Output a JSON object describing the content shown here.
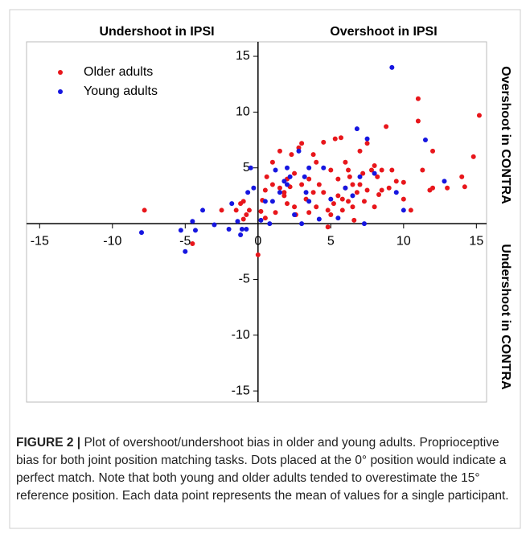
{
  "chart_data": {
    "type": "scatter",
    "annotations": [
      "Undershoot in IPSI",
      "Overshoot in IPSI",
      "Overshoot in CONTRA",
      "Undershoot in CONTRA"
    ],
    "caption_label": "FIGURE 2 |",
    "caption_text": "Plot of overshoot/undershoot bias in older and young adults. Proprioceptive bias for both joint position matching tasks. Dots placed at the 0° position would indicate a perfect match. Note that both young and older adults tended to overestimate the 15° reference position. Each data point represents the mean of values for a single participant.",
    "xlim": [
      -15.9,
      15.7
    ],
    "ylim": [
      -16,
      16.3
    ],
    "xticks": [
      -15,
      -10,
      -5,
      0,
      5,
      10,
      15
    ],
    "yticks": [
      -15,
      -10,
      -5,
      5,
      10,
      15
    ],
    "legend": "top-left",
    "series": [
      {
        "name": "Older adults",
        "color": "#e8161b",
        "x": [
          -7.8,
          -4.5,
          -2.5,
          -1.5,
          -1.2,
          -1,
          -1,
          -0.8,
          -0.6,
          0,
          0.2,
          0.3,
          0.5,
          0.5,
          0.6,
          1,
          1,
          1.2,
          1.5,
          1.5,
          1.8,
          2,
          2,
          2.3,
          2.5,
          2.5,
          2.8,
          3,
          3,
          3.3,
          3.5,
          3.5,
          3.8,
          4,
          4.2,
          4.5,
          4.5,
          4.8,
          5,
          5,
          5.2,
          5.3,
          5.5,
          5.5,
          5.7,
          5.8,
          6,
          6,
          6.2,
          6.3,
          6.5,
          6.5,
          6.8,
          7,
          7,
          7.2,
          7.3,
          7.5,
          7.5,
          7.8,
          8,
          8,
          8.2,
          8.5,
          8.5,
          8.8,
          9,
          9.2,
          9.5,
          10,
          10,
          10.5,
          11,
          11,
          11.3,
          11.8,
          12,
          12,
          13,
          14,
          14.2,
          14.8,
          15.2,
          1.8,
          2.2,
          3.8,
          4.8,
          6.6,
          5.8,
          2.6,
          4,
          6.2,
          8.3
        ],
        "values": [
          1.2,
          -1.8,
          1.2,
          1.2,
          1.8,
          0.4,
          2,
          0.8,
          1.2,
          -2.8,
          1.1,
          2.1,
          0.5,
          3,
          4.2,
          3.5,
          5.5,
          1,
          6.5,
          3.2,
          2.5,
          4,
          1.8,
          6.2,
          4.5,
          1.5,
          6.8,
          7.2,
          3.5,
          2.2,
          4,
          1,
          6.2,
          5.5,
          3.5,
          2.8,
          7.3,
          1.2,
          4.8,
          0.8,
          1.8,
          7.6,
          4,
          2.5,
          7.7,
          1.2,
          5.5,
          3.2,
          2,
          4.2,
          3.5,
          1.5,
          2.8,
          3.5,
          6.5,
          4.5,
          2,
          3,
          7.2,
          4.8,
          1.5,
          5.2,
          4.2,
          3,
          4.8,
          8.7,
          3.2,
          4.8,
          3.8,
          2.2,
          3.7,
          1.2,
          11.2,
          9.2,
          4.8,
          3,
          6.5,
          3.2,
          3.2,
          4.2,
          3.3,
          6,
          9.7,
          2.8,
          3.3,
          2.8,
          -0.3,
          0.3,
          2.2,
          0.8,
          1.5,
          4.8,
          2.6
        ]
      },
      {
        "name": "Young adults",
        "color": "#1616e0",
        "x": [
          -8,
          -5.3,
          -5,
          -4.5,
          -4.3,
          -3.8,
          -3,
          -2,
          -1.8,
          -1.4,
          -1.2,
          -1.1,
          -0.8,
          -0.7,
          -0.5,
          -0.3,
          0.2,
          0.5,
          0.8,
          1,
          1.2,
          1.5,
          1.8,
          2,
          2.2,
          2.5,
          2.8,
          3.2,
          3.3,
          3.5,
          3.5,
          4.2,
          4.5,
          5,
          5.5,
          6,
          6.8,
          7,
          7.3,
          7.5,
          8,
          9.5,
          9.2,
          10,
          11.5,
          12.8,
          2,
          3,
          6.5
        ],
        "values": [
          -0.8,
          -0.6,
          -2.5,
          0.2,
          -0.6,
          1.2,
          -0.1,
          -0.5,
          1.8,
          0.2,
          -1,
          -0.5,
          -0.5,
          2.8,
          5,
          3.2,
          0.3,
          2,
          0,
          2,
          4.8,
          2.8,
          3.8,
          5,
          4.2,
          0.8,
          6.5,
          4.2,
          2.8,
          5,
          2,
          0.4,
          5,
          2.2,
          0.5,
          3.2,
          8.5,
          4.2,
          0,
          7.6,
          4.5,
          2.8,
          14,
          1.2,
          7.5,
          3.8,
          3.5,
          0,
          2.5
        ]
      }
    ]
  }
}
